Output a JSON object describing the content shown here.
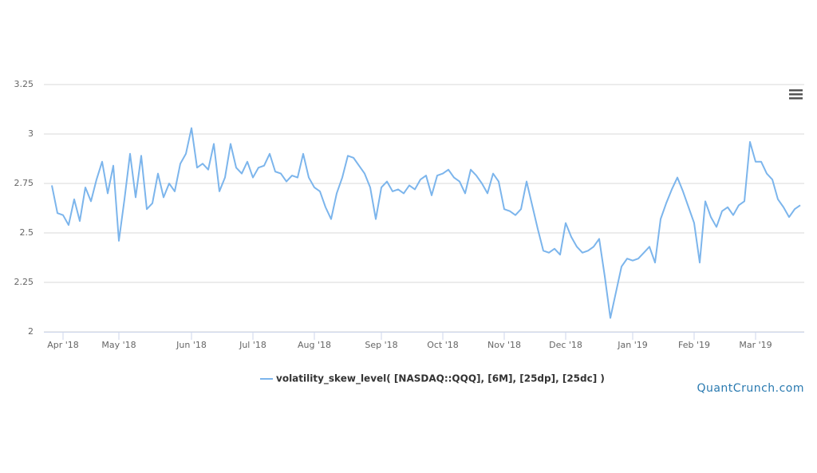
{
  "chart_data": {
    "type": "line",
    "categories": [
      null,
      null,
      "Apr '18",
      null,
      null,
      null,
      null,
      null,
      null,
      null,
      null,
      null,
      "May '18",
      null,
      null,
      null,
      null,
      null,
      null,
      null,
      null,
      null,
      null,
      null,
      null,
      "Jun '18",
      null,
      null,
      null,
      null,
      null,
      null,
      null,
      null,
      null,
      null,
      "Jul '18",
      null,
      null,
      null,
      null,
      null,
      null,
      null,
      null,
      null,
      null,
      "Aug '18",
      null,
      null,
      null,
      null,
      null,
      null,
      null,
      null,
      null,
      null,
      null,
      "Sep '18",
      null,
      null,
      null,
      null,
      null,
      null,
      null,
      null,
      null,
      null,
      "Oct '18",
      null,
      null,
      null,
      null,
      null,
      null,
      null,
      null,
      null,
      null,
      "Nov '18",
      null,
      null,
      null,
      null,
      null,
      null,
      null,
      null,
      null,
      null,
      "Dec '18",
      null,
      null,
      null,
      null,
      null,
      null,
      null,
      null,
      null,
      null,
      null,
      "Jan '19",
      null,
      null,
      null,
      null,
      null,
      null,
      null,
      null,
      null,
      null,
      "Feb '19",
      null,
      null,
      null,
      null,
      null,
      null,
      null,
      null,
      null,
      null,
      "Mar '19",
      null,
      null,
      null,
      null,
      null,
      null,
      null,
      null
    ],
    "series": [
      {
        "name": "volatility_skew_level( [NASDAQ::QQQ], [6M], [25dp], [25dc] )",
        "color": "#7cb5ec",
        "values": [
          2.74,
          2.6,
          2.59,
          2.54,
          2.67,
          2.56,
          2.73,
          2.66,
          2.77,
          2.86,
          2.7,
          2.84,
          2.46,
          2.67,
          2.9,
          2.68,
          2.89,
          2.62,
          2.65,
          2.8,
          2.68,
          2.75,
          2.71,
          2.85,
          2.9,
          3.03,
          2.83,
          2.85,
          2.82,
          2.95,
          2.71,
          2.78,
          2.95,
          2.83,
          2.8,
          2.86,
          2.78,
          2.83,
          2.84,
          2.9,
          2.81,
          2.8,
          2.76,
          2.79,
          2.78,
          2.9,
          2.78,
          2.73,
          2.71,
          2.63,
          2.57,
          2.7,
          2.78,
          2.89,
          2.88,
          2.84,
          2.8,
          2.73,
          2.57,
          2.73,
          2.76,
          2.71,
          2.72,
          2.7,
          2.74,
          2.72,
          2.77,
          2.79,
          2.69,
          2.79,
          2.8,
          2.82,
          2.78,
          2.76,
          2.7,
          2.82,
          2.79,
          2.75,
          2.7,
          2.8,
          2.76,
          2.62,
          2.61,
          2.59,
          2.62,
          2.76,
          2.64,
          2.52,
          2.41,
          2.4,
          2.42,
          2.39,
          2.55,
          2.48,
          2.43,
          2.4,
          2.41,
          2.43,
          2.47,
          2.28,
          2.07,
          2.2,
          2.33,
          2.37,
          2.36,
          2.37,
          2.4,
          2.43,
          2.35,
          2.57,
          2.65,
          2.72,
          2.78,
          2.71,
          2.63,
          2.55,
          2.35,
          2.66,
          2.58,
          2.53,
          2.61,
          2.63,
          2.59,
          2.64,
          2.66,
          2.96,
          2.86,
          2.86,
          2.8,
          2.77,
          2.67,
          2.63,
          2.58,
          2.62,
          2.64
        ]
      }
    ],
    "ylim": [
      2,
      3.25
    ],
    "yticks": [
      2,
      2.25,
      2.5,
      2.75,
      3,
      3.25
    ],
    "grid": true,
    "credit": "QuantCrunch.com"
  }
}
